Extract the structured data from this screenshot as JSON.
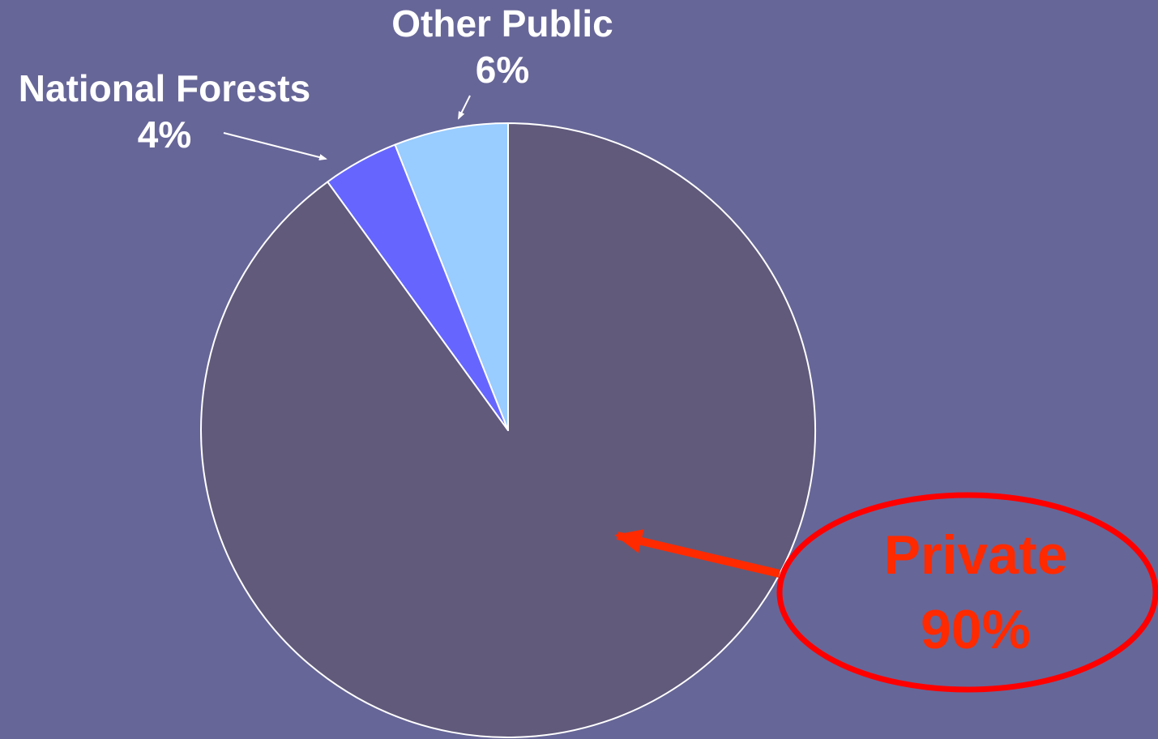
{
  "chart_data": {
    "type": "pie",
    "slices": [
      {
        "label": "Private",
        "pct_label": "90%",
        "value": 90,
        "color": "#615a7b"
      },
      {
        "label": "National Forests",
        "pct_label": "4%",
        "value": 4,
        "color": "#6666ff"
      },
      {
        "label": "Other Public",
        "pct_label": "6%",
        "value": 6,
        "color": "#99ccff"
      }
    ],
    "background_color": "#676698",
    "callout_color": "#ff2a00",
    "ring_color": "#ff0000",
    "border_color": "#ffffff"
  }
}
